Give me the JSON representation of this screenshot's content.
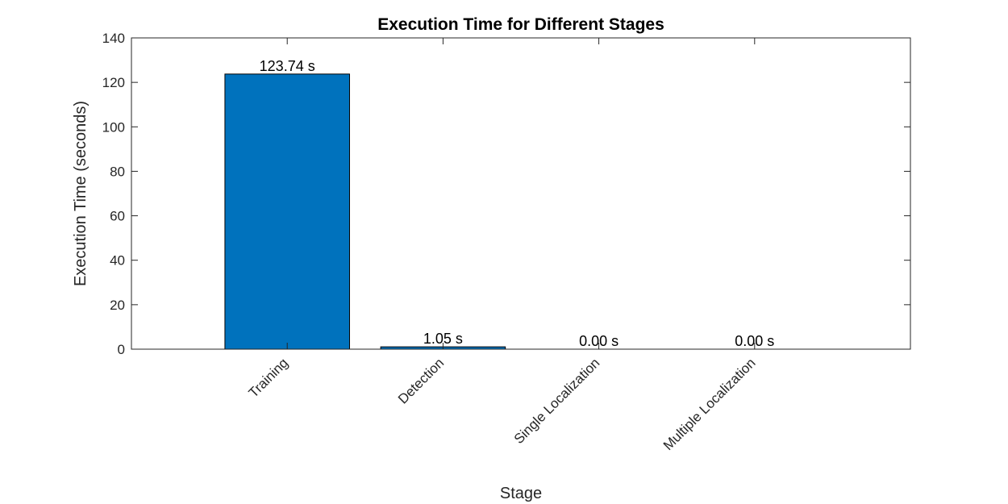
{
  "chart_data": {
    "type": "bar",
    "title": "Execution Time for Different Stages",
    "xlabel": "Stage",
    "ylabel": "Execution Time (seconds)",
    "categories": [
      "Training",
      "Detection",
      "Single Localization",
      "Multiple Localization"
    ],
    "values": [
      123.74,
      1.05,
      0.0,
      0.0
    ],
    "data_labels": [
      "123.74 s",
      "1.05 s",
      "0.00 s",
      "0.00 s"
    ],
    "ylim": [
      0,
      140
    ],
    "yticks": [
      "0",
      "20",
      "40",
      "60",
      "80",
      "100",
      "120",
      "140"
    ],
    "grid": false,
    "legend": "none",
    "bar_color": "#0072BD"
  }
}
